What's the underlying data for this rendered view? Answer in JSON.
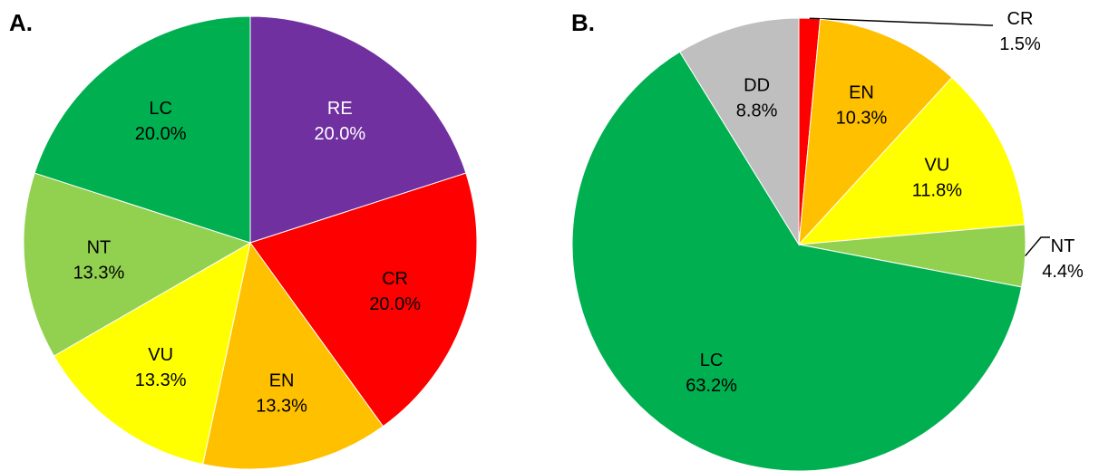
{
  "panels": {
    "a_label": "A.",
    "b_label": "B."
  },
  "chart_data": [
    {
      "type": "pie",
      "panel": "A.",
      "slices": [
        {
          "category": "RE",
          "value": 20.0,
          "label": "20.0%",
          "color": "#7030A0",
          "text_color": "#ffffff"
        },
        {
          "category": "CR",
          "value": 20.0,
          "label": "20.0%",
          "color": "#FF0000",
          "text_color": "#000000"
        },
        {
          "category": "EN",
          "value": 13.3,
          "label": "13.3%",
          "color": "#FFC000",
          "text_color": "#000000"
        },
        {
          "category": "VU",
          "value": 13.3,
          "label": "13.3%",
          "color": "#FFFF00",
          "text_color": "#000000"
        },
        {
          "category": "NT",
          "value": 13.3,
          "label": "13.3%",
          "color": "#92D050",
          "text_color": "#000000"
        },
        {
          "category": "LC",
          "value": 20.0,
          "label": "20.0%",
          "color": "#00B050",
          "text_color": "#000000"
        }
      ]
    },
    {
      "type": "pie",
      "panel": "B.",
      "slices": [
        {
          "category": "CR",
          "value": 1.5,
          "label": "1.5%",
          "color": "#FF0000",
          "text_color": "#000000"
        },
        {
          "category": "EN",
          "value": 10.3,
          "label": "10.3%",
          "color": "#FFC000",
          "text_color": "#000000"
        },
        {
          "category": "VU",
          "value": 11.8,
          "label": "11.8%",
          "color": "#FFFF00",
          "text_color": "#000000"
        },
        {
          "category": "NT",
          "value": 4.4,
          "label": "4.4%",
          "color": "#92D050",
          "text_color": "#000000"
        },
        {
          "category": "LC",
          "value": 63.2,
          "label": "63.2%",
          "color": "#00B050",
          "text_color": "#000000"
        },
        {
          "category": "DD",
          "value": 8.8,
          "label": "8.8%",
          "color": "#BFBFBF",
          "text_color": "#000000"
        }
      ]
    }
  ]
}
